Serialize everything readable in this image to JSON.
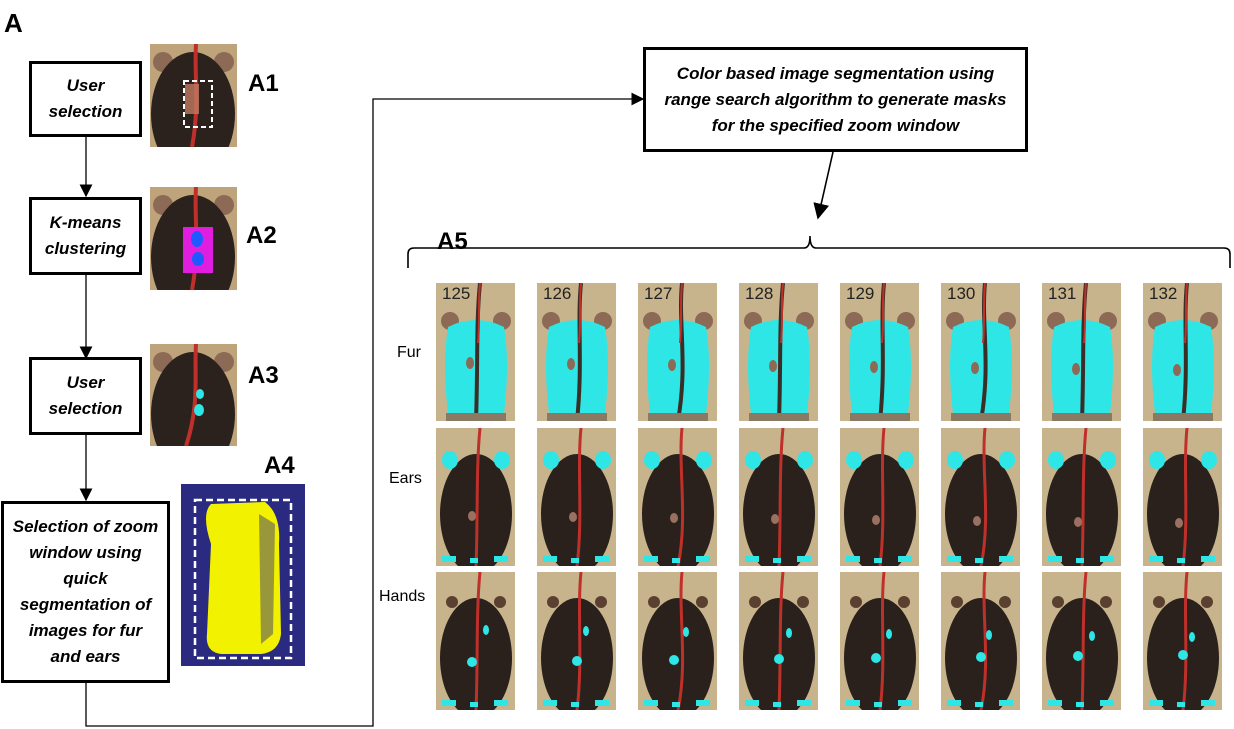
{
  "figure_label": "A",
  "steps": {
    "a1": {
      "text": "User selection",
      "label": "A1"
    },
    "a2": {
      "text": "K-means clustering",
      "label": "A2"
    },
    "a3": {
      "text": "User selection",
      "label": "A3"
    },
    "a4": {
      "text": "Selection of zoom window using quick segmentation of images for fur and ears",
      "label": "A4"
    },
    "a5": {
      "text": "Color based image segmentation using range search algorithm to generate masks for the specified zoom window",
      "label": "A5"
    }
  },
  "frames": [
    "125",
    "126",
    "127",
    "128",
    "129",
    "130",
    "131",
    "132"
  ],
  "rows": [
    "Fur",
    "Ears",
    "Hands"
  ],
  "colors": {
    "segment": "#2ee6e6",
    "background": "#c8b48c",
    "mouse": "#2a211c",
    "fur_mouse": "#3a2e27",
    "tail": "#c0302a",
    "zoom_bg": "#2a2a80",
    "zoom_fill": "#f2f200",
    "kmeans_patch": "#e01ee0",
    "kmeans_blob": "#1e5aff"
  }
}
